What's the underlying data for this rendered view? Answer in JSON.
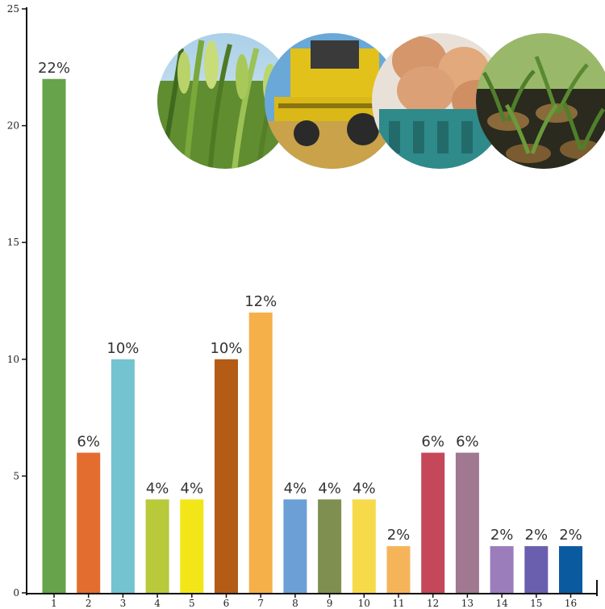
{
  "chart_data": {
    "type": "bar",
    "categories": [
      "1",
      "2",
      "3",
      "4",
      "5",
      "6",
      "7",
      "8",
      "9",
      "10",
      "11",
      "12",
      "13",
      "14",
      "15",
      "16"
    ],
    "values": [
      22,
      6,
      10,
      4,
      4,
      10,
      12,
      4,
      4,
      4,
      2,
      6,
      6,
      2,
      2,
      2
    ],
    "data_labels": [
      "22%",
      "6%",
      "10%",
      "4%",
      "4%",
      "10%",
      "12%",
      "4%",
      "4%",
      "4%",
      "2%",
      "6%",
      "6%",
      "2%",
      "2%",
      "2%"
    ],
    "colors": [
      "#66a34a",
      "#e36d2f",
      "#74c3d1",
      "#b8c93a",
      "#f2e619",
      "#b45c16",
      "#f6b04a",
      "#6b9fd6",
      "#7f8f50",
      "#f7da4a",
      "#f6b45a",
      "#c4475a",
      "#a0788f",
      "#9b7dbb",
      "#6a5fae",
      "#0a5aa0"
    ],
    "ylim": [
      0,
      25
    ],
    "yticks": [
      0,
      5,
      10,
      15,
      20,
      25
    ],
    "title": "",
    "xlabel": "",
    "ylabel": "",
    "grid": false,
    "images": [
      {
        "name": "rice-plant-photo",
        "colors": [
          "#4f7a2a",
          "#a9c85a",
          "#d9e6a0"
        ]
      },
      {
        "name": "combine-harvester-photo",
        "colors": [
          "#e2c21a",
          "#6aa8d8",
          "#c9a24a"
        ]
      },
      {
        "name": "egg-carton-photo",
        "colors": [
          "#d99a6a",
          "#2f8a8a",
          "#e8b890"
        ]
      },
      {
        "name": "seedling-nursery-photo",
        "colors": [
          "#4f7f2a",
          "#2a2a1f",
          "#8a6a3a"
        ]
      }
    ]
  }
}
